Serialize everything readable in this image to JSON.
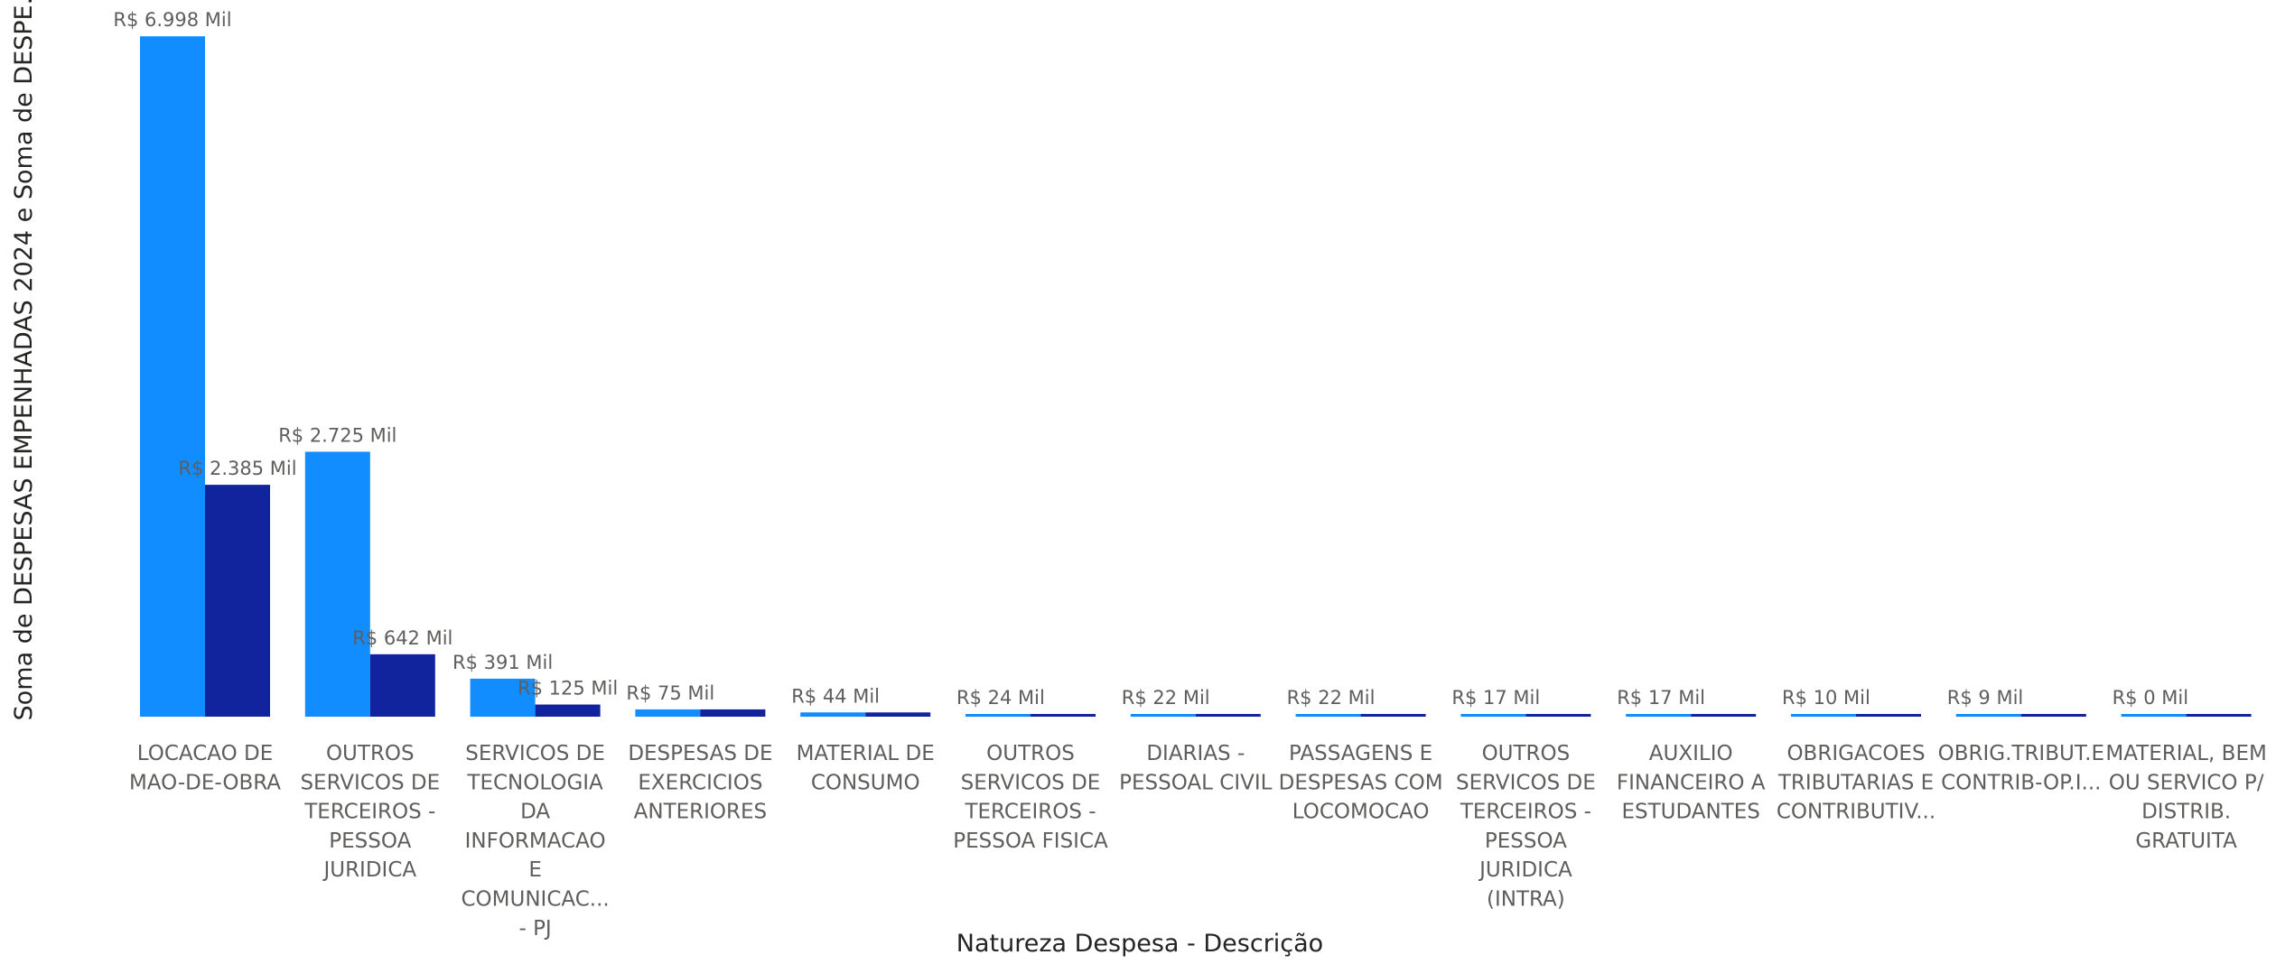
{
  "chart_data": {
    "type": "bar",
    "title": "",
    "xlabel": "Natureza Despesa - Descrição",
    "ylabel": "Soma de DESPESAS EMPENHADAS 2024 e Soma de DESPE...",
    "colors": [
      "#118DFF",
      "#12239E"
    ],
    "categories": [
      [
        "LOCACAO DE",
        "MAO-DE-OBRA"
      ],
      [
        "OUTROS",
        "SERVICOS DE",
        "TERCEIROS -",
        "PESSOA",
        "JURIDICA"
      ],
      [
        "SERVICOS DE",
        "TECNOLOGIA",
        "DA",
        "INFORMACAO",
        "E",
        "COMUNICAC...",
        "- PJ"
      ],
      [
        "DESPESAS DE",
        "EXERCICIOS",
        "ANTERIORES"
      ],
      [
        "MATERIAL DE",
        "CONSUMO"
      ],
      [
        "OUTROS",
        "SERVICOS DE",
        "TERCEIROS -",
        "PESSOA FISICA"
      ],
      [
        "DIARIAS -",
        "PESSOAL CIVIL"
      ],
      [
        "PASSAGENS E",
        "DESPESAS COM",
        "LOCOMOCAO"
      ],
      [
        "OUTROS",
        "SERVICOS DE",
        "TERCEIROS -",
        "PESSOA",
        "JURIDICA",
        "(INTRA)"
      ],
      [
        "AUXILIO",
        "FINANCEIRO A",
        "ESTUDANTES"
      ],
      [
        "OBRIGACOES",
        "TRIBUTARIAS E",
        "CONTRIBUTIV..."
      ],
      [
        "OBRIG.TRIBUT.E",
        "CONTRIB-OP.I..."
      ],
      [
        "MATERIAL, BEM",
        "OU SERVICO P/",
        "DISTRIB.",
        "GRATUITA"
      ]
    ],
    "ylim": [
      0,
      7000
    ],
    "series": [
      {
        "values": [
          6998,
          2725,
          391,
          75,
          44,
          24,
          22,
          22,
          17,
          17,
          10,
          9,
          0
        ],
        "labels": [
          "R$ 6.998 Mil",
          "R$ 2.725 Mil",
          "R$ 391 Mil",
          "R$ 75 Mil",
          "R$ 44 Mil",
          "R$ 24 Mil",
          "R$ 22 Mil",
          "R$ 22 Mil",
          "R$ 17 Mil",
          "R$ 17 Mil",
          "R$ 10 Mil",
          "R$ 9 Mil",
          "R$ 0 Mil"
        ]
      },
      {
        "values": [
          2385,
          642,
          125,
          75,
          44,
          3,
          3,
          3,
          3,
          3,
          3,
          3,
          3
        ],
        "labels": [
          "R$ 2.385 Mil",
          "R$ 642 Mil",
          "R$ 125 Mil",
          "",
          "",
          "",
          "",
          "",
          "",
          "",
          "",
          "",
          ""
        ]
      }
    ]
  }
}
